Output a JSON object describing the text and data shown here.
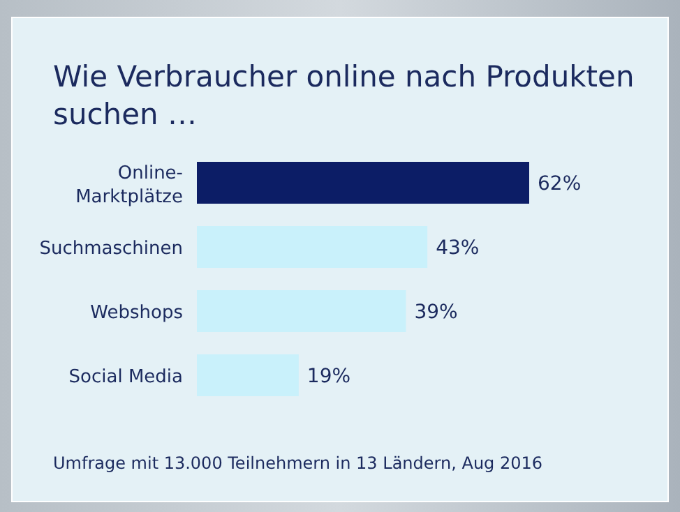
{
  "chart_data": {
    "type": "bar",
    "orientation": "horizontal",
    "title": "Wie Verbraucher online nach Produkten suchen …",
    "categories": [
      "Online-Marktplätze",
      "Suchmaschinen",
      "Webshops",
      "Social Media"
    ],
    "values": [
      62,
      43,
      39,
      19
    ],
    "value_labels": [
      "62%",
      "43%",
      "39%",
      "19%"
    ],
    "colors": [
      "#0c1d66",
      "#c9f1fb",
      "#c9f1fb",
      "#c9f1fb"
    ],
    "annotations": [
      "Umfrage mit 13.000 Teilnehmern in 13 Ländern,  Aug 2016"
    ]
  }
}
